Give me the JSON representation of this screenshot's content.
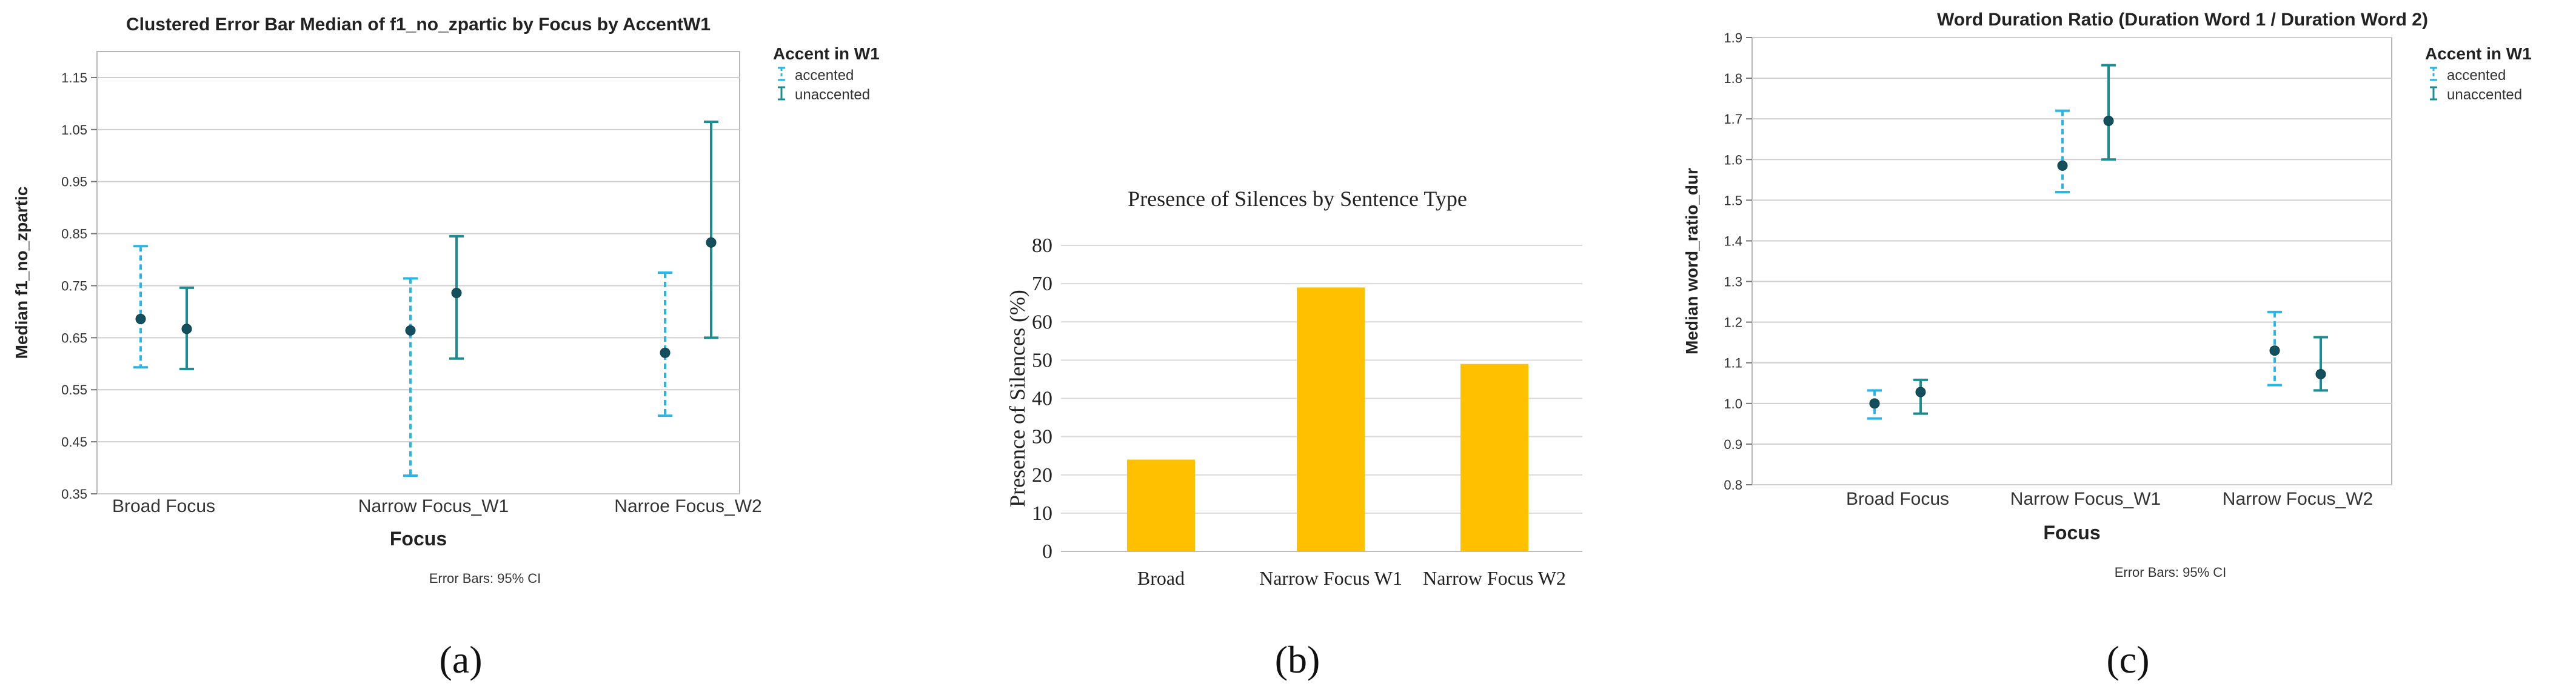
{
  "chart_data": [
    {
      "type": "error-bar",
      "panel_label": "(a)",
      "title": "Clustered Error Bar Median of f1_no_zpartic by Focus by AccentW1",
      "xlabel": "Focus",
      "ylabel": "Median f1_no_zpartic",
      "note": "Error Bars: 95% CI",
      "legend_title": "Accent in W1",
      "legend_position": "top-right",
      "categories": [
        "Broad Focus",
        "Narrow Focus_W1",
        "Narroe Focus_W2"
      ],
      "ylim": [
        0.35,
        1.2
      ],
      "y_ticks": [
        "0.35",
        "0.45",
        "0.55",
        "0.65",
        "0.75",
        "0.85",
        "0.95",
        "1.05",
        "1.15"
      ],
      "grid": true,
      "series": [
        {
          "name": "accented",
          "style": "dashed",
          "color": "#29b6e6",
          "values": [
            0.686,
            0.664,
            0.621
          ],
          "ci_low": [
            0.593,
            0.385,
            0.5
          ],
          "ci_high": [
            0.826,
            0.764,
            0.775
          ]
        },
        {
          "name": "unaccented",
          "style": "solid",
          "color": "#1b8c8f",
          "values": [
            0.667,
            0.736,
            0.833
          ],
          "ci_low": [
            0.59,
            0.61,
            0.65
          ],
          "ci_high": [
            0.746,
            0.845,
            1.065
          ]
        }
      ]
    },
    {
      "type": "bar",
      "panel_label": "(b)",
      "title": "Presence of Silences by Sentence Type",
      "xlabel": "",
      "ylabel": "Presence of Silences (%)",
      "categories": [
        "Broad",
        "Narrow Focus W1",
        "Narrow Focus W2"
      ],
      "values": [
        24,
        69,
        49
      ],
      "ylim": [
        0,
        80
      ],
      "y_ticks": [
        "0",
        "10",
        "20",
        "30",
        "40",
        "50",
        "60",
        "70",
        "80"
      ],
      "grid": true,
      "color": "#ffc000"
    },
    {
      "type": "error-bar",
      "panel_label": "(c)",
      "title": "Word Duration Ratio (Duration Word 1 / Duration Word 2)",
      "xlabel": "Focus",
      "ylabel": "Median word_ratio_dur",
      "note": "Error Bars: 95% CI",
      "legend_title": "Accent in W1",
      "legend_position": "top-right",
      "categories": [
        "Broad Focus",
        "Narrow Focus_W1",
        "Narrow Focus_W2"
      ],
      "ylim": [
        0.8,
        1.9
      ],
      "y_ticks": [
        "0.8",
        "0.9",
        "1.0",
        "1.1",
        "1.2",
        "1.3",
        "1.4",
        "1.5",
        "1.6",
        "1.7",
        "1.8",
        "1.9"
      ],
      "grid": true,
      "series": [
        {
          "name": "accented",
          "style": "dashed",
          "color": "#29b6e6",
          "values": [
            1.0,
            1.585,
            1.13
          ],
          "ci_low": [
            0.963,
            1.52,
            1.045
          ],
          "ci_high": [
            1.032,
            1.72,
            1.225
          ]
        },
        {
          "name": "unaccented",
          "style": "solid",
          "color": "#1b8c8f",
          "values": [
            1.028,
            1.695,
            1.072
          ],
          "ci_low": [
            0.975,
            1.6,
            1.032
          ],
          "ci_high": [
            1.058,
            1.832,
            1.163
          ]
        }
      ]
    }
  ]
}
